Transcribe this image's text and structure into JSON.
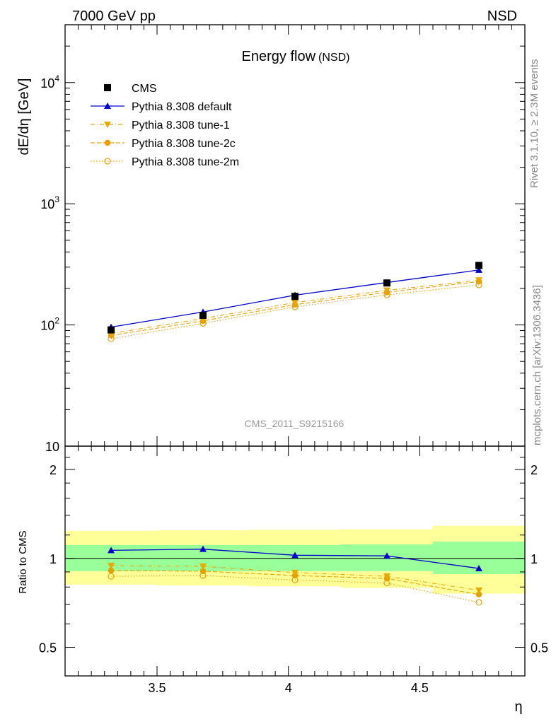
{
  "header": {
    "left": "7000 GeV pp",
    "right": "NSD"
  },
  "side": {
    "top": "Rivet 3.1.10, ≥ 2.3M events",
    "bottom": "mcplots.cern.ch [arXiv:1306.3436]"
  },
  "chart_data": [
    {
      "type": "line",
      "panel": "main",
      "title": "Energy flow",
      "title_suffix": "(NSD)",
      "ylabel": "dE/dη [GeV]",
      "yscale": "log",
      "ylim": [
        10,
        30000
      ],
      "xlim": [
        3.15,
        4.9
      ],
      "yticks": [
        {
          "value": 10,
          "label": "10",
          "exp": ""
        },
        {
          "value": 100,
          "label": "10",
          "exp": "2"
        },
        {
          "value": 1000,
          "label": "10",
          "exp": "3"
        },
        {
          "value": 10000,
          "label": "10",
          "exp": "4"
        }
      ],
      "annotation": "CMS_2011_S9215166",
      "legend_position": "top-left",
      "series": [
        {
          "name": "CMS",
          "marker": "square",
          "color": "#000000",
          "line": "none",
          "x": [
            3.325,
            3.675,
            4.025,
            4.375,
            4.725
          ],
          "y": [
            91,
            120,
            172,
            222,
            310
          ]
        },
        {
          "name": "Pythia 8.308 default",
          "marker": "triangle-up",
          "color": "#0000cc",
          "line": "solid",
          "x": [
            3.325,
            3.675,
            4.025,
            4.375,
            4.725
          ],
          "y": [
            96,
            128,
            176,
            224,
            284
          ]
        },
        {
          "name": "Pythia 8.308 tune-1",
          "marker": "triangle-down",
          "color": "#e8a800",
          "line": "dashdot",
          "x": [
            3.325,
            3.675,
            4.025,
            4.375,
            4.725
          ],
          "y": [
            85,
            113,
            153,
            193,
            234
          ]
        },
        {
          "name": "Pythia 8.308 tune-2c",
          "marker": "circle",
          "color": "#e8a000",
          "line": "dashed",
          "x": [
            3.325,
            3.675,
            4.025,
            4.375,
            4.725
          ],
          "y": [
            82,
            108,
            147,
            186,
            228
          ]
        },
        {
          "name": "Pythia 8.308 tune-2m",
          "marker": "circle-open",
          "color": "#e8a000",
          "line": "dotted",
          "x": [
            3.325,
            3.675,
            4.025,
            4.375,
            4.725
          ],
          "y": [
            77,
            103,
            141,
            177,
            214
          ]
        }
      ]
    },
    {
      "type": "line",
      "panel": "ratio",
      "ylabel": "Ratio to CMS",
      "xlabel": "η",
      "yscale": "log",
      "ylim": [
        0.4,
        2.4
      ],
      "xlim": [
        3.15,
        4.9
      ],
      "xticks": [
        {
          "value": 3.5,
          "label": "3.5"
        },
        {
          "value": 4,
          "label": "4"
        },
        {
          "value": 4.5,
          "label": "4.5"
        }
      ],
      "yticks": [
        {
          "value": 0.5,
          "label": "0.5"
        },
        {
          "value": 1,
          "label": "1"
        },
        {
          "value": 2,
          "label": "2"
        }
      ],
      "bands": [
        {
          "x_edges": [
            3.15,
            3.5,
            3.85,
            4.2,
            4.55,
            4.9
          ],
          "inner": [
            [
              0.905,
              1.11
            ],
            [
              0.905,
              1.11
            ],
            [
              0.905,
              1.11
            ],
            [
              0.905,
              1.115
            ],
            [
              0.885,
              1.14
            ]
          ],
          "outer": [
            [
              0.815,
              1.24
            ],
            [
              0.81,
              1.245
            ],
            [
              0.805,
              1.25
            ],
            [
              0.795,
              1.255
            ],
            [
              0.76,
              1.29
            ]
          ]
        }
      ],
      "band_colors": {
        "inner": "#99ff99",
        "outer": "#ffff99"
      },
      "series": [
        {
          "name": "Pythia 8.308 default",
          "marker": "triangle-up",
          "color": "#0000cc",
          "line": "solid",
          "x": [
            3.325,
            3.675,
            4.025,
            4.375,
            4.725
          ],
          "y": [
            1.065,
            1.075,
            1.025,
            1.02,
            0.925
          ]
        },
        {
          "name": "Pythia 8.308 tune-1",
          "marker": "triangle-down",
          "color": "#e8a800",
          "line": "dashdot",
          "x": [
            3.325,
            3.675,
            4.025,
            4.375,
            4.725
          ],
          "y": [
            0.945,
            0.94,
            0.895,
            0.87,
            0.78
          ]
        },
        {
          "name": "Pythia 8.308 tune-2c",
          "marker": "circle",
          "color": "#e8a000",
          "line": "dashed",
          "x": [
            3.325,
            3.675,
            4.025,
            4.375,
            4.725
          ],
          "y": [
            0.91,
            0.905,
            0.875,
            0.855,
            0.755
          ]
        },
        {
          "name": "Pythia 8.308 tune-2m",
          "marker": "circle-open",
          "color": "#e8a000",
          "line": "dotted",
          "x": [
            3.325,
            3.675,
            4.025,
            4.375,
            4.725
          ],
          "y": [
            0.87,
            0.875,
            0.845,
            0.825,
            0.71
          ]
        }
      ]
    }
  ]
}
